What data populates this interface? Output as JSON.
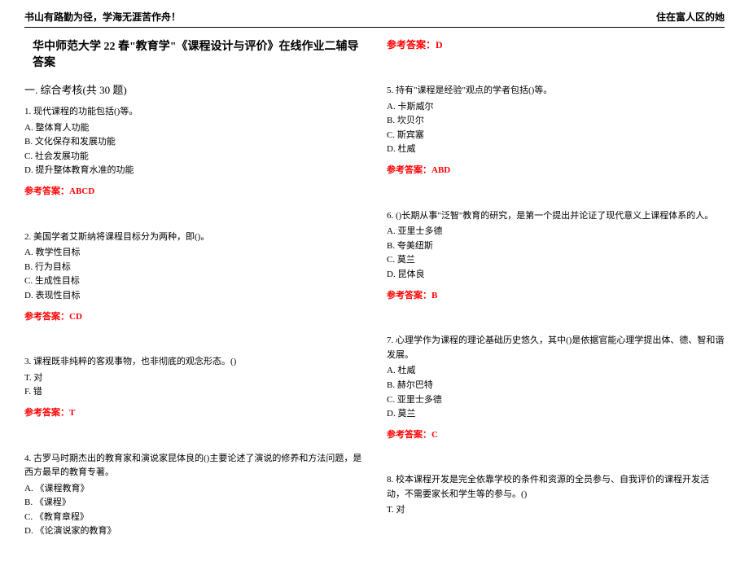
{
  "header": {
    "left": "书山有路勤为径，学海无涯苦作舟！",
    "right": "住在富人区的她"
  },
  "title": "华中师范大学 22 春\"教育学\"《课程设计与评价》在线作业二辅导答案",
  "section_header": "一. 综合考核(共 30 题)",
  "left_questions": [
    {
      "stem": "1. 现代课程的功能包括()等。",
      "options": [
        "A. 整体育人功能",
        "B. 文化保存和发展功能",
        "C. 社会发展功能",
        "D. 提升整体教育水准的功能"
      ],
      "answer": "参考答案：ABCD"
    },
    {
      "stem": "2. 美国学者艾斯纳将课程目标分为两种，即()。",
      "options": [
        "A. 教学性目标",
        "B. 行为目标",
        "C. 生成性目标",
        "D. 表现性目标"
      ],
      "answer": "参考答案：CD"
    },
    {
      "stem": "3. 课程既非纯粹的客观事物，也非彻底的观念形态。()",
      "options": [
        "T. 对",
        "F. 错"
      ],
      "answer": "参考答案：T"
    },
    {
      "stem": "4. 古罗马时期杰出的教育家和演说家昆体良的()主要论述了演说的修养和方法问题，是西方最早的教育专著。",
      "options": [
        "A. 《课程教育》",
        "B. 《课程》",
        "C. 《教育章程》",
        "D. 《论演说家的教育》"
      ],
      "answer": ""
    }
  ],
  "right_top_answer": "参考答案：D",
  "right_questions": [
    {
      "stem": "5. 持有\"课程是经验\"观点的学者包括()等。",
      "options": [
        "A. 卡斯威尔",
        "B. 坎贝尔",
        "C. 斯宾塞",
        "D. 杜威"
      ],
      "answer": "参考答案：ABD"
    },
    {
      "stem": "6. ()长期从事\"泛智\"教育的研究，是第一个提出并论证了现代意义上课程体系的人。",
      "options": [
        "A. 亚里士多德",
        "B. 夸美纽斯",
        "C. 莫兰",
        "D. 昆体良"
      ],
      "answer": "参考答案：B"
    },
    {
      "stem": "7. 心理学作为课程的理论基础历史悠久，其中()是依据官能心理学提出体、德、智和谐发展。",
      "options": [
        "A. 杜威",
        "B. 赫尔巴特",
        "C. 亚里士多德",
        "D. 莫兰"
      ],
      "answer": "参考答案：C"
    },
    {
      "stem": "8. 校本课程开发是完全依靠学校的条件和资源的全员参与、自我评价的课程开发活动，不需要家长和学生等的参与。()",
      "options": [
        "T. 对"
      ],
      "answer": ""
    }
  ],
  "colors": {
    "answer_color": "#ff0000",
    "text_color": "#000000",
    "background": "#ffffff"
  }
}
